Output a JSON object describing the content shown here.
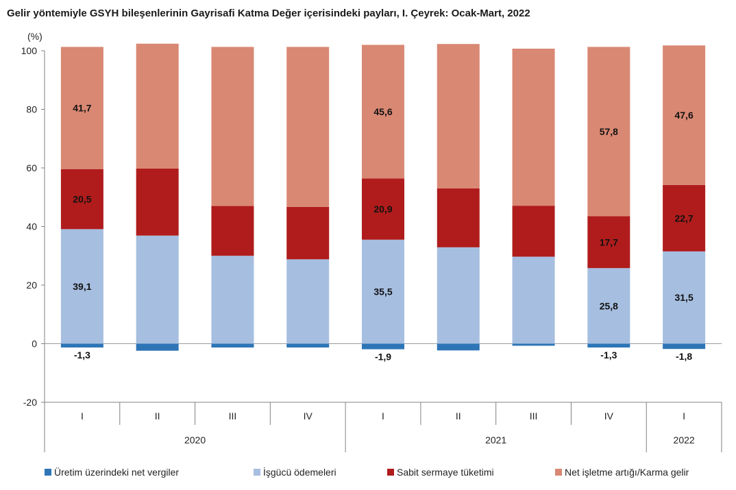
{
  "chart_data": {
    "type": "bar",
    "stacked": true,
    "title": "Gelir yöntemiyle GSYH bileşenlerinin Gayrisafi Katma Değer içerisindeki payları, I. Çeyrek: Ocak-Mart, 2022",
    "ylabel": "(%)",
    "xlabel": "",
    "ylim": [
      -20,
      100
    ],
    "yticks": [
      -20,
      0,
      20,
      40,
      60,
      80,
      100
    ],
    "grid": false,
    "legend_position": "bottom",
    "categories": [
      "I",
      "II",
      "III",
      "IV",
      "I",
      "II",
      "III",
      "IV",
      "I"
    ],
    "years": [
      {
        "label": "2020",
        "span": 4
      },
      {
        "label": "2021",
        "span": 4
      },
      {
        "label": "2022",
        "span": 1
      }
    ],
    "series": [
      {
        "name": "Üretim üzerindeki net vergiler",
        "color": "#2e75b6",
        "values": [
          -1.3,
          -2.4,
          -1.3,
          -1.3,
          -1.9,
          -2.3,
          -0.7,
          -1.3,
          -1.8
        ],
        "labels": [
          "-1,3",
          "",
          "",
          "",
          "-1,9",
          "",
          "",
          "-1,3",
          "-1,8"
        ]
      },
      {
        "name": "İşgücü ödemeleri",
        "color": "#a6bee0",
        "values": [
          39.1,
          36.9,
          30.0,
          28.8,
          35.5,
          32.9,
          29.7,
          25.8,
          31.5
        ],
        "labels": [
          "39,1",
          "",
          "",
          "",
          "35,5",
          "",
          "",
          "25,8",
          "31,5"
        ]
      },
      {
        "name": "Sabit sermaye tüketimi",
        "color": "#b01c1c",
        "values": [
          20.5,
          22.9,
          17.0,
          17.9,
          20.9,
          20.1,
          17.4,
          17.7,
          22.7
        ],
        "labels": [
          "20,5",
          "",
          "",
          "",
          "20,9",
          "",
          "",
          "17,7",
          "22,7"
        ]
      },
      {
        "name": "Net işletme artığı/Karma gelir",
        "color": "#d98873",
        "values": [
          41.7,
          42.6,
          54.3,
          54.6,
          45.6,
          49.3,
          53.6,
          57.8,
          47.6
        ],
        "labels": [
          "41,7",
          "",
          "",
          "",
          "45,6",
          "",
          "",
          "57,8",
          "47,6"
        ]
      }
    ]
  }
}
